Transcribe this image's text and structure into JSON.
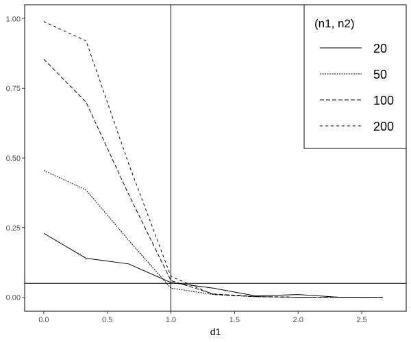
{
  "chart_data": {
    "type": "line",
    "xlabel": "d1",
    "ylabel": "",
    "xlim": [
      -0.15,
      2.85
    ],
    "ylim": [
      -0.05,
      1.05
    ],
    "xticks": [
      0.0,
      0.5,
      1.0,
      1.5,
      2.0,
      2.5
    ],
    "xtick_labels": [
      "0.0",
      "0.5",
      "1.0",
      "1.5",
      "2.0",
      "2.5"
    ],
    "yticks": [
      0.0,
      0.25,
      0.5,
      0.75,
      1.0
    ],
    "ytick_labels": [
      "0.00",
      "0.25",
      "0.50",
      "0.75",
      "1.00"
    ],
    "reference_lines": {
      "vertical_x": 1.0,
      "horizontal_y": 0.05
    },
    "grid": false,
    "legend": {
      "title": "(n1, n2)",
      "position": "top-right"
    },
    "series": [
      {
        "name": "20",
        "dash": "solid",
        "x": [
          0,
          0.333,
          0.667,
          1.0,
          1.333,
          1.667,
          2.0,
          2.333,
          2.667
        ],
        "y": [
          0.23,
          0.14,
          0.12,
          0.053,
          0.033,
          0.005,
          0.01,
          0.0,
          0.0
        ]
      },
      {
        "name": "50",
        "dash": "dotted",
        "x": [
          0,
          0.333,
          0.667,
          1.0,
          1.333,
          1.667,
          2.0,
          2.333,
          2.667
        ],
        "y": [
          0.455,
          0.385,
          0.205,
          0.033,
          0.01,
          0.002,
          0.0,
          0.0,
          0.0
        ]
      },
      {
        "name": "100",
        "dash": "dashed-short",
        "x": [
          0,
          0.333,
          0.667,
          1.0,
          1.333,
          1.667,
          2.0,
          2.333,
          2.667
        ],
        "y": [
          0.855,
          0.7,
          0.37,
          0.06,
          0.012,
          0.003,
          0.0,
          0.0,
          0.0
        ]
      },
      {
        "name": "200",
        "dash": "dashed-long",
        "x": [
          0,
          0.333,
          0.667,
          1.0,
          1.333,
          1.667,
          2.0,
          2.333,
          2.667
        ],
        "y": [
          0.99,
          0.92,
          0.48,
          0.075,
          0.01,
          0.002,
          0.0,
          0.0,
          0.0
        ]
      }
    ]
  }
}
